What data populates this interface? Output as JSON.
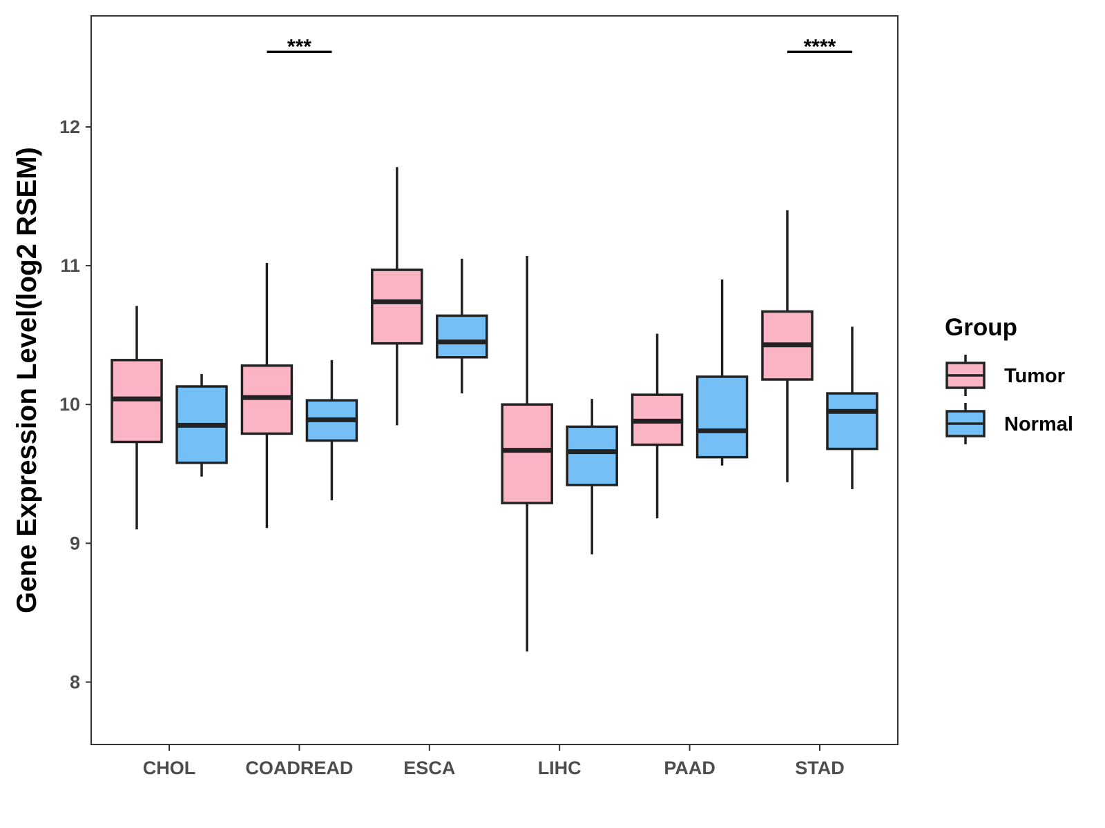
{
  "chart_data": {
    "type": "boxplot",
    "ylabel": "Gene Expression Level(log2 RSEM)",
    "xlabel": "",
    "ylim": [
      7.55,
      12.8
    ],
    "yticks": [
      8,
      9,
      10,
      11,
      12
    ],
    "grid": false,
    "legend": {
      "title": "Group",
      "placement": "right",
      "entries": [
        {
          "name": "Tumor",
          "color": "#fbb4c4"
        },
        {
          "name": "Normal",
          "color": "#74bff5"
        }
      ]
    },
    "categories": [
      "CHOL",
      "COADREAD",
      "ESCA",
      "LIHC",
      "PAAD",
      "STAD"
    ],
    "series": [
      {
        "name": "Tumor",
        "color": "#fbb4c4",
        "boxes": [
          {
            "min": 9.1,
            "q1": 9.73,
            "median": 10.04,
            "q3": 10.32,
            "max": 10.71
          },
          {
            "min": 9.11,
            "q1": 9.79,
            "median": 10.05,
            "q3": 10.28,
            "max": 11.02
          },
          {
            "min": 9.85,
            "q1": 10.44,
            "median": 10.74,
            "q3": 10.97,
            "max": 11.71
          },
          {
            "min": 8.22,
            "q1": 9.29,
            "median": 9.67,
            "q3": 10.0,
            "max": 11.07
          },
          {
            "min": 9.18,
            "q1": 9.71,
            "median": 9.88,
            "q3": 10.07,
            "max": 10.51
          },
          {
            "min": 9.44,
            "q1": 10.18,
            "median": 10.43,
            "q3": 10.67,
            "max": 11.4
          }
        ]
      },
      {
        "name": "Normal",
        "color": "#74bff5",
        "boxes": [
          {
            "min": 9.48,
            "q1": 9.58,
            "median": 9.85,
            "q3": 10.13,
            "max": 10.22
          },
          {
            "min": 9.31,
            "q1": 9.74,
            "median": 9.89,
            "q3": 10.03,
            "max": 10.32
          },
          {
            "min": 10.08,
            "q1": 10.34,
            "median": 10.45,
            "q3": 10.64,
            "max": 11.05
          },
          {
            "min": 8.92,
            "q1": 9.42,
            "median": 9.66,
            "q3": 9.84,
            "max": 10.04
          },
          {
            "min": 9.56,
            "q1": 9.62,
            "median": 9.81,
            "q3": 10.2,
            "max": 10.9
          },
          {
            "min": 9.39,
            "q1": 9.68,
            "median": 9.95,
            "q3": 10.08,
            "max": 10.56
          }
        ]
      }
    ],
    "annotations": [
      {
        "category": "COADREAD",
        "label": "***",
        "y": 12.54
      },
      {
        "category": "STAD",
        "label": "****",
        "y": 12.54
      }
    ]
  }
}
